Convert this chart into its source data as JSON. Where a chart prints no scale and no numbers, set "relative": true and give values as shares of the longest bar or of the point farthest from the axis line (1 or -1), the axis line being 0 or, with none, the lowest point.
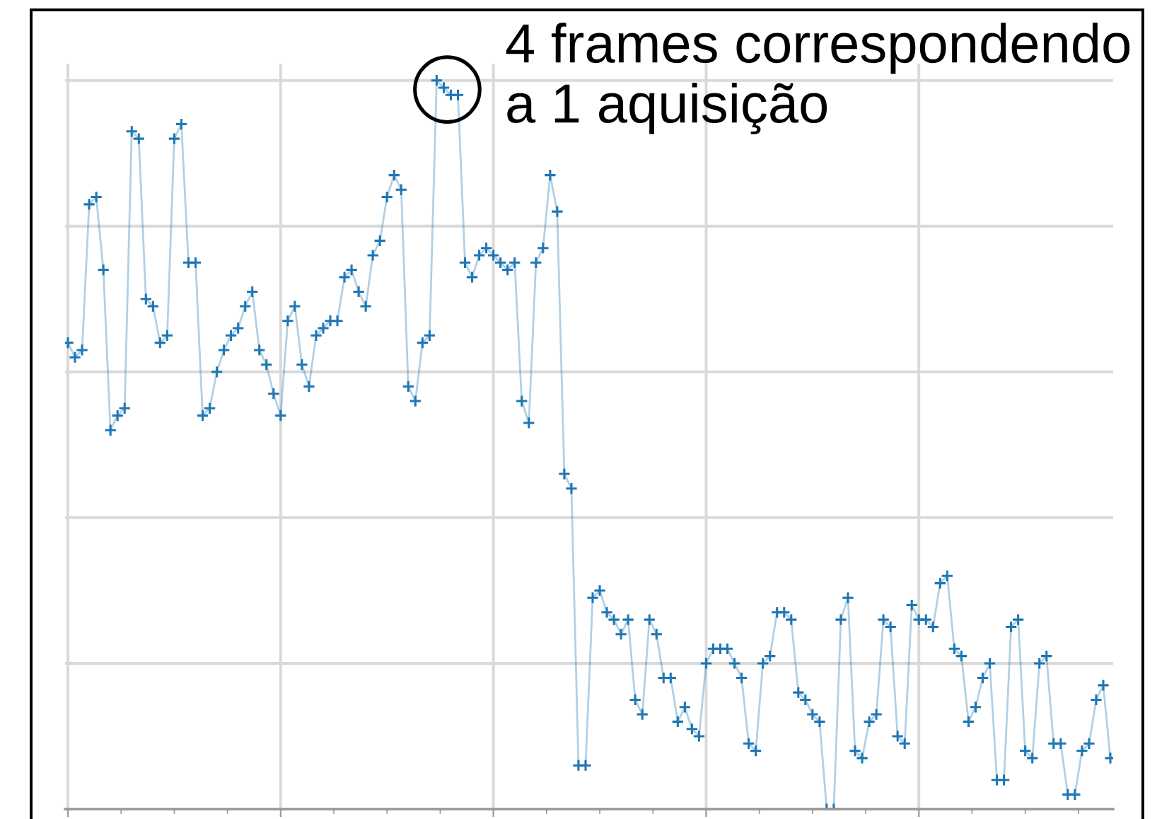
{
  "chart_data": {
    "type": "line",
    "relative": true,
    "grid": true,
    "marker": "cross",
    "categories": [
      null,
      null,
      null,
      null,
      null,
      null,
      null,
      null,
      null,
      null,
      null,
      null,
      null,
      null,
      null,
      null,
      null,
      null,
      null,
      null,
      null,
      null,
      null,
      null,
      null,
      null,
      null,
      null,
      null,
      null,
      null,
      null,
      null,
      null,
      null,
      null,
      null,
      null,
      null,
      null,
      null,
      null,
      null,
      null,
      null,
      null,
      null,
      null,
      null,
      null,
      null,
      null,
      null,
      null,
      null,
      null,
      null,
      null,
      null,
      null,
      null,
      null,
      null,
      null,
      null,
      null,
      null,
      null,
      null,
      null,
      null,
      null,
      null,
      null,
      null,
      null,
      null,
      null,
      null,
      null,
      null,
      null,
      null,
      null,
      null,
      null,
      null,
      null,
      null,
      null,
      null,
      null,
      null,
      null,
      null,
      null,
      null,
      null,
      null,
      null,
      null,
      null,
      null,
      null,
      null,
      null,
      null,
      null,
      null,
      null,
      null,
      null,
      null,
      null,
      null,
      null,
      null,
      null,
      null,
      null,
      null,
      null,
      null,
      null,
      null,
      null,
      null,
      null,
      null,
      null,
      null,
      null,
      null,
      null,
      null,
      null,
      null,
      null,
      null,
      null,
      null,
      null,
      null,
      null,
      null,
      null,
      null,
      null
    ],
    "series": [
      {
        "color": "#1f77b4",
        "values": [
          0.64,
          0.62,
          0.63,
          0.83,
          0.84,
          0.74,
          0.52,
          0.54,
          0.55,
          0.93,
          0.92,
          0.7,
          0.69,
          0.64,
          0.65,
          0.92,
          0.94,
          0.75,
          0.75,
          0.54,
          0.55,
          0.6,
          0.63,
          0.65,
          0.66,
          0.69,
          0.71,
          0.63,
          0.61,
          0.57,
          0.54,
          0.67,
          0.69,
          0.61,
          0.58,
          0.65,
          0.66,
          0.67,
          0.67,
          0.73,
          0.74,
          0.71,
          0.69,
          0.76,
          0.78,
          0.84,
          0.87,
          0.85,
          0.58,
          0.56,
          0.64,
          0.65,
          1.0,
          0.99,
          0.98,
          0.98,
          0.75,
          0.73,
          0.76,
          0.77,
          0.76,
          0.75,
          0.74,
          0.75,
          0.56,
          0.53,
          0.75,
          0.77,
          0.87,
          0.82,
          0.46,
          0.44,
          0.06,
          0.06,
          0.29,
          0.3,
          0.27,
          0.26,
          0.24,
          0.26,
          0.15,
          0.13,
          0.26,
          0.24,
          0.18,
          0.18,
          0.12,
          0.14,
          0.11,
          0.1,
          0.2,
          0.22,
          0.22,
          0.22,
          0.2,
          0.18,
          0.09,
          0.08,
          0.2,
          0.21,
          0.27,
          0.27,
          0.26,
          0.16,
          0.15,
          0.13,
          0.12,
          0.0,
          0.0,
          0.26,
          0.29,
          0.08,
          0.07,
          0.12,
          0.13,
          0.26,
          0.25,
          0.1,
          0.09,
          0.28,
          0.26,
          0.26,
          0.25,
          0.31,
          0.32,
          0.22,
          0.21,
          0.12,
          0.14,
          0.18,
          0.2,
          0.04,
          0.04,
          0.25,
          0.26,
          0.08,
          0.07,
          0.2,
          0.21,
          0.09,
          0.09,
          0.02,
          0.02,
          0.08,
          0.09,
          0.15,
          0.17,
          0.07
        ]
      }
    ],
    "annotations": [
      "4 frames correspondendo\na 1 aquisição"
    ]
  }
}
